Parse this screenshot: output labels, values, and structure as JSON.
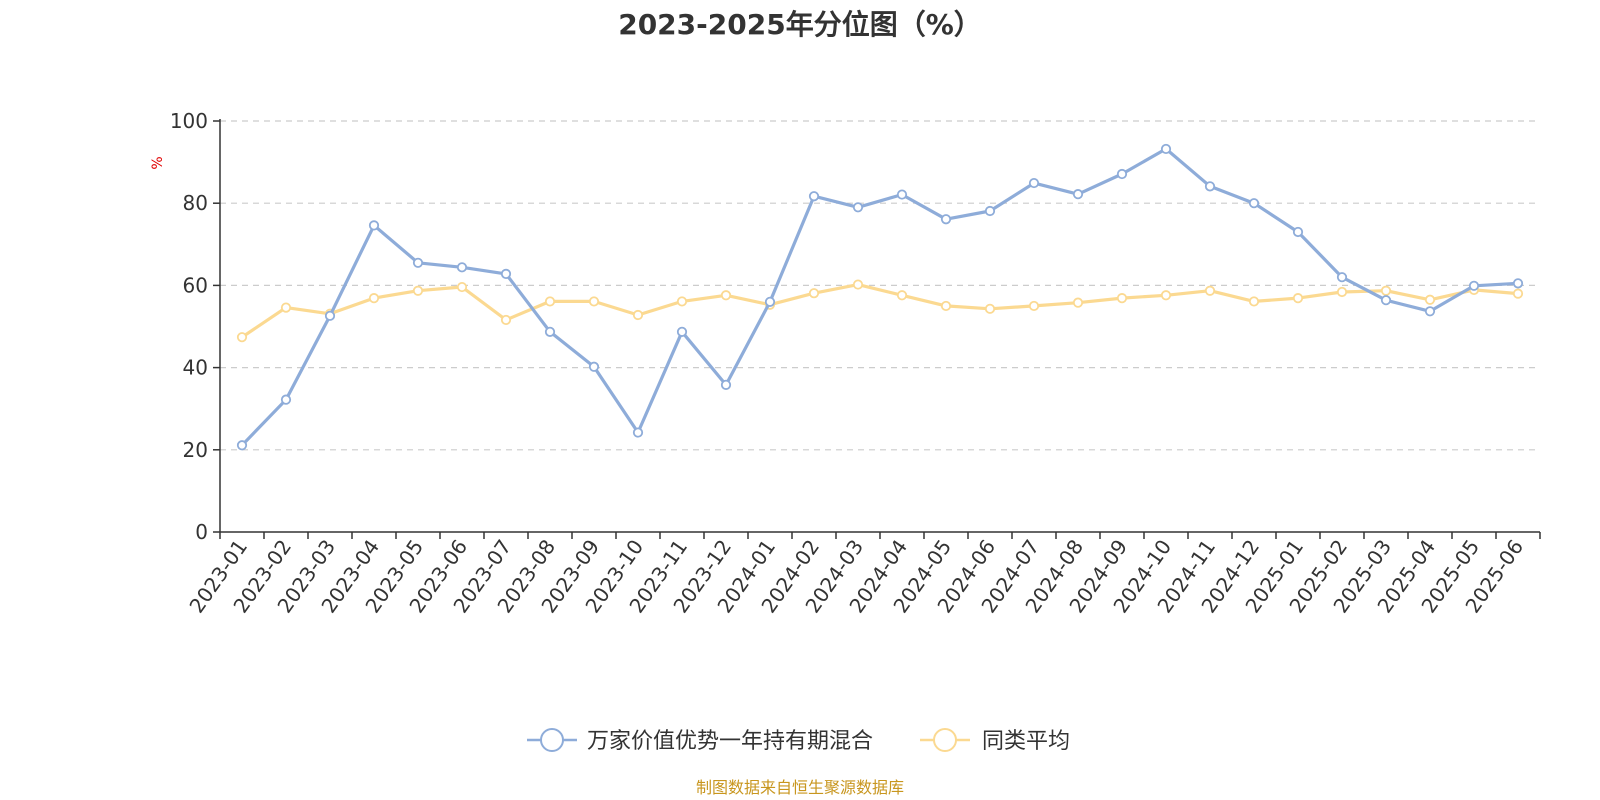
{
  "chart_data": {
    "type": "line",
    "title": "2023-2025年分位图（%）",
    "ylabel": "%",
    "xlabel": "",
    "ylim": [
      0,
      100
    ],
    "yticks": [
      0,
      20,
      40,
      60,
      80,
      100
    ],
    "grid": true,
    "legend_position": "bottom-center",
    "categories": [
      "2023-01",
      "2023-02",
      "2023-03",
      "2023-04",
      "2023-05",
      "2023-06",
      "2023-07",
      "2023-08",
      "2023-09",
      "2023-10",
      "2023-11",
      "2023-12",
      "2024-01",
      "2024-02",
      "2024-03",
      "2024-04",
      "2024-05",
      "2024-06",
      "2024-07",
      "2024-08",
      "2024-09",
      "2024-10",
      "2024-11",
      "2024-12",
      "2025-01",
      "2025-02",
      "2025-03",
      "2025-04",
      "2025-05",
      "2025-06"
    ],
    "series": [
      {
        "name": "万家价值优势一年持有期混合",
        "color": "#8eacd9",
        "values": [
          21.1,
          32.2,
          52.6,
          74.6,
          65.5,
          64.4,
          62.8,
          48.7,
          40.2,
          24.2,
          48.7,
          35.8,
          56.0,
          81.7,
          79.0,
          82.1,
          76.1,
          78.1,
          84.9,
          82.2,
          87.1,
          93.2,
          84.1,
          80.0,
          73.0,
          62.0,
          56.4,
          53.7,
          59.9,
          60.5
        ]
      },
      {
        "name": "同类平均",
        "color": "#fbd991",
        "values": [
          47.4,
          54.6,
          53.1,
          56.9,
          58.7,
          59.6,
          51.6,
          56.1,
          56.1,
          52.8,
          56.1,
          57.6,
          55.3,
          58.1,
          60.2,
          57.6,
          55.0,
          54.3,
          55.0,
          55.8,
          56.9,
          57.6,
          58.7,
          56.1,
          56.9,
          58.4,
          58.7,
          56.5,
          58.9,
          58.0
        ]
      }
    ]
  },
  "footer": {
    "source": "制图数据来自恒生聚源数据库"
  }
}
